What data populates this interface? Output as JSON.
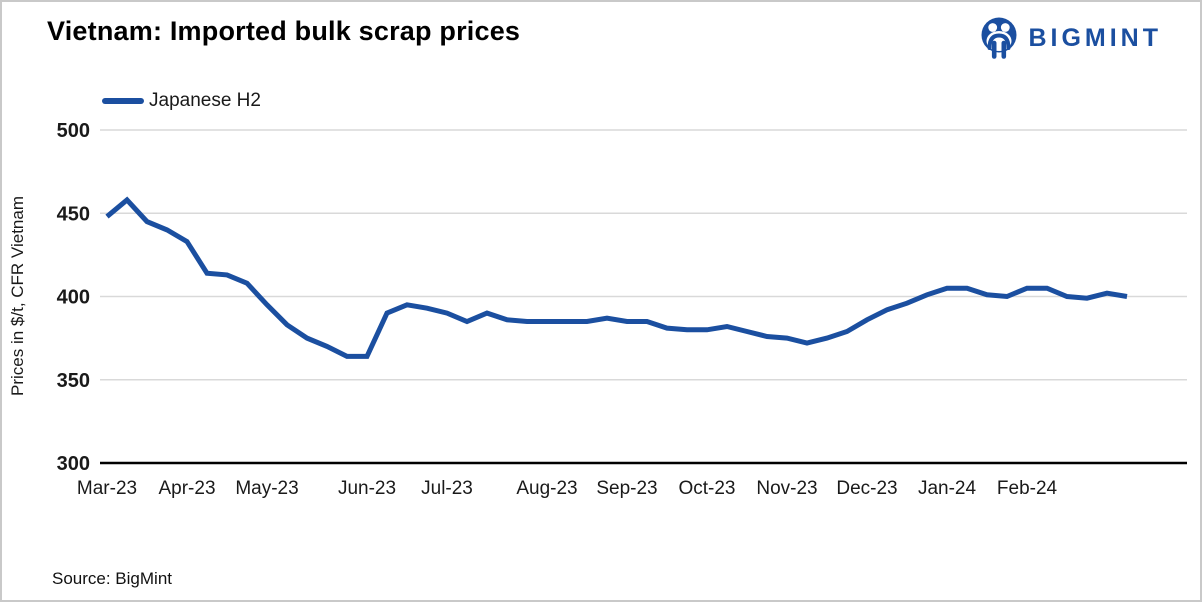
{
  "header": {
    "title": "Vietnam: Imported bulk scrap prices",
    "brand_name": "BIGMINT"
  },
  "legend": {
    "label": "Japanese H2"
  },
  "footer": {
    "source": "Source: BigMint"
  },
  "colors": {
    "accent_blue": "#1b4fa0",
    "grid": "#d9d9d9",
    "axis": "#000000",
    "text": "#1a1a1a"
  },
  "chart_data": {
    "type": "line",
    "title": "Vietnam: Imported bulk scrap prices",
    "xlabel": "",
    "ylabel": "Prices in $/t, CFR Vietnam",
    "ylim": [
      300,
      500
    ],
    "yticks": [
      300,
      350,
      400,
      450,
      500
    ],
    "grid": "horizontal",
    "legend_position": "top-left",
    "x_cadence": "weekly",
    "x_tick_labels": [
      "Mar-23",
      "Apr-23",
      "May-23",
      "Jun-23",
      "Jul-23",
      "Aug-23",
      "Sep-23",
      "Oct-23",
      "Nov-23",
      "Dec-23",
      "Jan-24",
      "Feb-24"
    ],
    "x_tick_point_indices": [
      0,
      4,
      8,
      13,
      17,
      22,
      26,
      30,
      34,
      38,
      42,
      46
    ],
    "series": [
      {
        "name": "Japanese H2",
        "color": "#1b4fa0",
        "values": [
          448,
          458,
          445,
          440,
          433,
          414,
          413,
          408,
          395,
          383,
          375,
          370,
          364,
          364,
          390,
          395,
          393,
          390,
          385,
          390,
          386,
          385,
          385,
          385,
          385,
          387,
          385,
          385,
          381,
          380,
          380,
          382,
          379,
          376,
          375,
          372,
          375,
          379,
          386,
          392,
          396,
          401,
          405,
          405,
          401,
          400,
          405,
          405,
          400,
          399,
          402,
          400
        ]
      }
    ]
  }
}
